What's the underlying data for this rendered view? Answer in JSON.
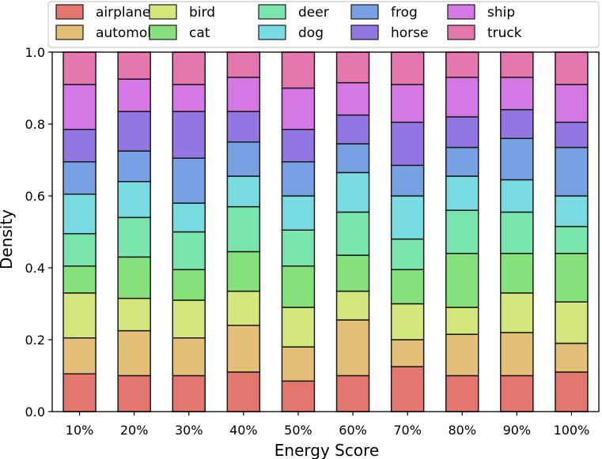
{
  "chart_data": {
    "type": "bar",
    "stacked": true,
    "xlabel": "Energy Score",
    "ylabel": "Density",
    "ylim": [
      0,
      1.0
    ],
    "yticks": [
      "0.0",
      "0.2",
      "0.4",
      "0.6",
      "0.8",
      "1.0"
    ],
    "categories": [
      "10%",
      "20%",
      "30%",
      "40%",
      "50%",
      "60%",
      "70%",
      "80%",
      "90%",
      "100%"
    ],
    "legend_position": "top",
    "series": [
      {
        "name": "airplane",
        "color": "#e3776e",
        "values": [
          0.105,
          0.1,
          0.1,
          0.11,
          0.085,
          0.1,
          0.125,
          0.1,
          0.1,
          0.11
        ]
      },
      {
        "name": "automobile",
        "color": "#e4bf78",
        "values": [
          0.1,
          0.125,
          0.105,
          0.13,
          0.095,
          0.155,
          0.075,
          0.115,
          0.12,
          0.08
        ]
      },
      {
        "name": "bird",
        "color": "#d4e77c",
        "values": [
          0.125,
          0.09,
          0.105,
          0.095,
          0.11,
          0.08,
          0.1,
          0.075,
          0.11,
          0.115
        ]
      },
      {
        "name": "cat",
        "color": "#84e17b",
        "values": [
          0.075,
          0.115,
          0.085,
          0.11,
          0.115,
          0.1,
          0.095,
          0.15,
          0.11,
          0.135
        ]
      },
      {
        "name": "deer",
        "color": "#7ae4ad",
        "values": [
          0.09,
          0.11,
          0.105,
          0.125,
          0.1,
          0.12,
          0.085,
          0.12,
          0.115,
          0.075
        ]
      },
      {
        "name": "dog",
        "color": "#79dbe2",
        "values": [
          0.11,
          0.1,
          0.08,
          0.085,
          0.095,
          0.11,
          0.12,
          0.095,
          0.09,
          0.085
        ]
      },
      {
        "name": "frog",
        "color": "#78a1e3",
        "values": [
          0.09,
          0.085,
          0.125,
          0.095,
          0.095,
          0.08,
          0.085,
          0.08,
          0.115,
          0.135
        ]
      },
      {
        "name": "horse",
        "color": "#9277e3",
        "values": [
          0.09,
          0.11,
          0.13,
          0.085,
          0.09,
          0.08,
          0.12,
          0.085,
          0.08,
          0.07
        ]
      },
      {
        "name": "ship",
        "color": "#d577e4",
        "values": [
          0.125,
          0.09,
          0.075,
          0.095,
          0.115,
          0.09,
          0.105,
          0.11,
          0.09,
          0.105
        ]
      },
      {
        "name": "truck",
        "color": "#e377ae",
        "values": [
          0.09,
          0.075,
          0.09,
          0.07,
          0.1,
          0.085,
          0.09,
          0.07,
          0.07,
          0.09
        ]
      }
    ]
  }
}
